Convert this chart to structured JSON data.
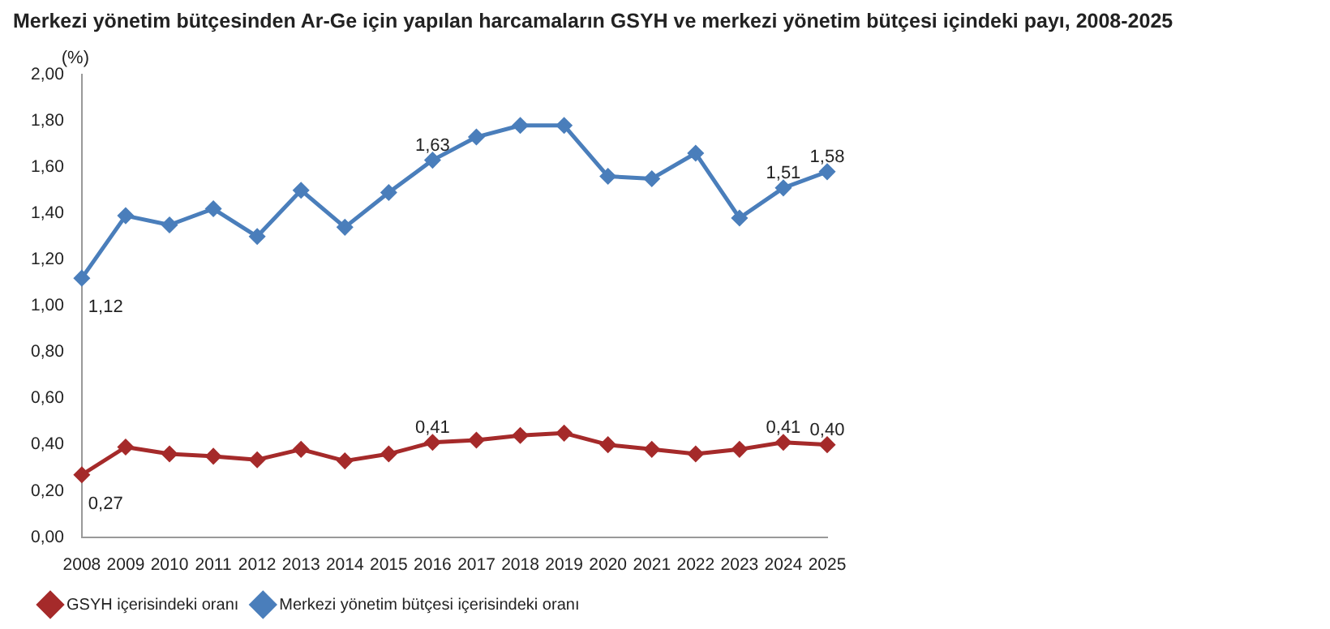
{
  "chart_data": {
    "type": "line",
    "title": "Merkezi yönetim bütçesinden Ar-Ge için yapılan harcamaların GSYH ve merkezi yönetim bütçesi içindeki payı, 2008-2025",
    "ylabel": "(%)",
    "categories": [
      "2008",
      "2009",
      "2010",
      "2011",
      "2012",
      "2013",
      "2014",
      "2015",
      "2016",
      "2017",
      "2018",
      "2019",
      "2020",
      "2021",
      "2022",
      "2023",
      "2024",
      "2025"
    ],
    "series": [
      {
        "name": "GSYH içerisindeki oranı",
        "color": "#a52a2a",
        "values": [
          0.27,
          0.39,
          0.36,
          0.35,
          0.335,
          0.38,
          0.33,
          0.36,
          0.41,
          0.42,
          0.44,
          0.45,
          0.4,
          0.38,
          0.36,
          0.38,
          0.41,
          0.4
        ],
        "value_labels": [
          "0,27",
          null,
          null,
          null,
          null,
          null,
          null,
          null,
          "0,41",
          null,
          null,
          null,
          null,
          null,
          null,
          null,
          "0,41",
          "0,40"
        ]
      },
      {
        "name": "Merkezi yönetim bütçesi içerisindeki oranı",
        "color": "#4a7ebb",
        "values": [
          1.12,
          1.39,
          1.35,
          1.42,
          1.3,
          1.5,
          1.34,
          1.49,
          1.63,
          1.73,
          1.78,
          1.78,
          1.56,
          1.55,
          1.66,
          1.38,
          1.51,
          1.58
        ],
        "value_labels": [
          "1,12",
          null,
          null,
          null,
          null,
          null,
          null,
          null,
          "1,63",
          null,
          null,
          null,
          null,
          null,
          null,
          null,
          "1,51",
          "1,58"
        ]
      }
    ],
    "ylim": [
      0,
      2
    ],
    "yticks": [
      {
        "value": 0,
        "label": "0,00"
      },
      {
        "value": 0.2,
        "label": "0,20"
      },
      {
        "value": 0.4,
        "label": "0,40"
      },
      {
        "value": 0.6,
        "label": "0,60"
      },
      {
        "value": 0.8,
        "label": "0,80"
      },
      {
        "value": 1,
        "label": "1,00"
      },
      {
        "value": 1.2,
        "label": "1,20"
      },
      {
        "value": 1.4,
        "label": "1,40"
      },
      {
        "value": 1.6,
        "label": "1,60"
      },
      {
        "value": 1.8,
        "label": "1,80"
      },
      {
        "value": 2,
        "label": "2,00"
      }
    ],
    "grid": false,
    "legend": "bottom",
    "marker": "diamond",
    "line_style": "solid"
  }
}
